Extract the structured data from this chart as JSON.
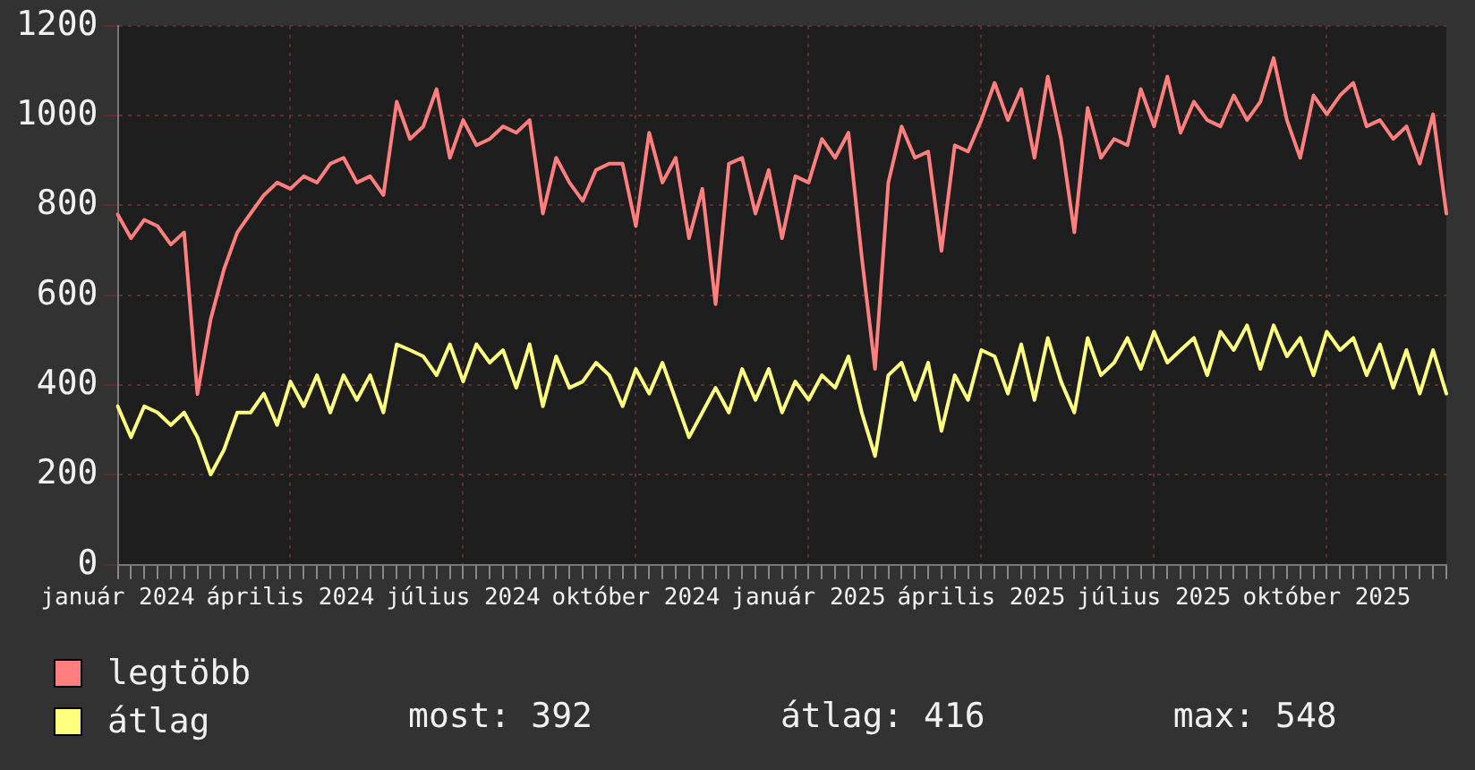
{
  "chart_data": {
    "type": "line",
    "categories": [
      "január 2024",
      null,
      null,
      null,
      null,
      null,
      null,
      null,
      null,
      null,
      null,
      null,
      null,
      "április 2024",
      null,
      null,
      null,
      null,
      null,
      null,
      null,
      null,
      null,
      null,
      null,
      null,
      "július 2024",
      null,
      null,
      null,
      null,
      null,
      null,
      null,
      null,
      null,
      null,
      null,
      null,
      "október 2024",
      null,
      null,
      null,
      null,
      null,
      null,
      null,
      null,
      null,
      null,
      null,
      null,
      "január 2025",
      null,
      null,
      null,
      null,
      null,
      null,
      null,
      null,
      null,
      null,
      null,
      null,
      "április 2025",
      null,
      null,
      null,
      null,
      null,
      null,
      null,
      null,
      null,
      null,
      null,
      null,
      "július 2025",
      null,
      null,
      null,
      null,
      null,
      null,
      null,
      null,
      null,
      null,
      null,
      null,
      "október 2025",
      null,
      null,
      null,
      null,
      null,
      null,
      null,
      null,
      null
    ],
    "series": [
      {
        "name": "legtöbb",
        "color": "#ff7f7f",
        "values": [
          780,
          727,
          768,
          754,
          713,
          740,
          380,
          547,
          658,
          740,
          782,
          823,
          851,
          837,
          865,
          851,
          893,
          906,
          851,
          865,
          823,
          1031,
          948,
          976,
          1059,
          906,
          990,
          934,
          948,
          976,
          962,
          990,
          782,
          906,
          851,
          810,
          879,
          893,
          893,
          754,
          962,
          851,
          906,
          727,
          837,
          580,
          893,
          906,
          782,
          879,
          727,
          865,
          851,
          948,
          906,
          962,
          685,
          436,
          851,
          976,
          906,
          920,
          699,
          934,
          920,
          990,
          1073,
          990,
          1059,
          906,
          1087,
          948,
          740,
          1017,
          906,
          948,
          934,
          1059,
          976,
          1087,
          962,
          1031,
          990,
          976,
          1045,
          990,
          1031,
          1128,
          990,
          906,
          1045,
          1003,
          1045,
          1073,
          976,
          990,
          948,
          976,
          893,
          1003,
          782
        ]
      },
      {
        "name": "átlag",
        "color": "#ffff7f",
        "values": [
          353,
          284,
          353,
          339,
          311,
          339,
          284,
          201,
          256,
          339,
          339,
          381,
          311,
          408,
          353,
          422,
          339,
          422,
          367,
          422,
          339,
          491,
          478,
          464,
          422,
          491,
          408,
          491,
          450,
          478,
          394,
          491,
          353,
          464,
          394,
          408,
          450,
          422,
          353,
          436,
          381,
          450,
          367,
          284,
          339,
          394,
          339,
          436,
          367,
          436,
          339,
          408,
          367,
          422,
          394,
          464,
          339,
          242,
          422,
          450,
          367,
          450,
          298,
          422,
          367,
          478,
          464,
          381,
          491,
          367,
          505,
          408,
          339,
          505,
          422,
          450,
          505,
          436,
          519,
          450,
          478,
          505,
          422,
          519,
          478,
          533,
          436,
          533,
          464,
          505,
          422,
          519,
          478,
          505,
          422,
          491,
          394,
          478,
          381,
          478,
          381
        ]
      }
    ],
    "ylim": [
      0,
      1200
    ],
    "yticks": [
      0,
      200,
      400,
      600,
      800,
      1000,
      1200
    ],
    "grid": true,
    "legend": "bottom",
    "marker": "none",
    "line_style": "solid",
    "annotations": [
      "most: 392",
      "átlag: 416",
      "max: 548"
    ]
  }
}
